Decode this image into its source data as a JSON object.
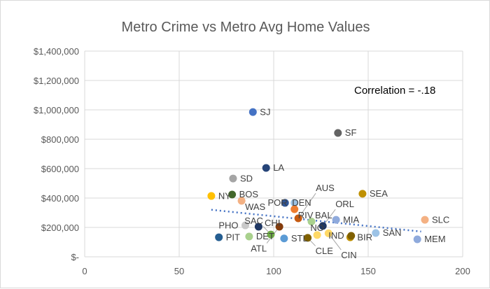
{
  "chart_data": {
    "type": "scatter",
    "title": "Metro Crime vs Metro Avg Home Values",
    "annotation": "Correlation = -.18",
    "xlim": [
      0,
      200
    ],
    "ylim": [
      0,
      1400000
    ],
    "x_ticks": [
      "0",
      "50",
      "100",
      "150",
      "200"
    ],
    "y_ticks": [
      "$-",
      "$200,000",
      "$400,000",
      "$600,000",
      "$800,000",
      "$1,000,000",
      "$1,200,000",
      "$1,400,000"
    ],
    "grid": true,
    "trendline": {
      "style": "dotted",
      "color": "#4472c4",
      "from": [
        67,
        320000
      ],
      "to": [
        178,
        172000
      ]
    },
    "points": [
      {
        "label": "SJ",
        "x": 89,
        "y": 985000,
        "color": "#4472c4"
      },
      {
        "label": "SF",
        "x": 134,
        "y": 843000,
        "color": "#636363"
      },
      {
        "label": "LA",
        "x": 96,
        "y": 605000,
        "color": "#264478"
      },
      {
        "label": "SD",
        "x": 78.5,
        "y": 533000,
        "color": "#a5a5a5"
      },
      {
        "label": "SEA",
        "x": 147,
        "y": 429000,
        "color": "#bf9000"
      },
      {
        "label": "BOS",
        "x": 78,
        "y": 424000,
        "color": "#43682b"
      },
      {
        "label": "NY",
        "x": 67,
        "y": 414000,
        "color": "#ffc000"
      },
      {
        "label": "WAS",
        "x": 83,
        "y": 381000,
        "color": "#f4b183"
      },
      {
        "label": "DEN",
        "x": 106,
        "y": 367000,
        "color": "#2f5597"
      },
      {
        "label": "POR",
        "x": 111,
        "y": 367000,
        "color": "#9dc3e6"
      },
      {
        "label": "RIV",
        "x": 111,
        "y": 324000,
        "color": "#ed7d31"
      },
      {
        "label": "AUS",
        "x": 113,
        "y": 262000,
        "color": "#c55a11"
      },
      {
        "label": "BAL",
        "x": 120,
        "y": 240000,
        "color": "#a9d18e"
      },
      {
        "label": "MIA",
        "x": 133,
        "y": 252000,
        "color": "#8faadc"
      },
      {
        "label": "SLC",
        "x": 180,
        "y": 252000,
        "color": "#f4b183"
      },
      {
        "label": "PHO",
        "x": 85,
        "y": 214000,
        "color": "#c9c9c9"
      },
      {
        "label": "CHI",
        "x": 92,
        "y": 205000,
        "color": "#203864"
      },
      {
        "label": "ATL",
        "x": 103,
        "y": 205000,
        "color": "#843c0c"
      },
      {
        "label": "ORL",
        "x": 126,
        "y": 210000,
        "color": "#1f3864"
      },
      {
        "label": "CIN",
        "x": 129,
        "y": 160000,
        "color": "#ffd966"
      },
      {
        "label": "SAN",
        "x": 154,
        "y": 162000,
        "color": "#9dc3e6"
      },
      {
        "label": "MEM",
        "x": 176,
        "y": 119000,
        "color": "#8faadc"
      },
      {
        "label": "PIT",
        "x": 71,
        "y": 133000,
        "color": "#255e91"
      },
      {
        "label": "DET",
        "x": 87,
        "y": 138000,
        "color": "#a9d18e"
      },
      {
        "label": "SAC",
        "x": 98.5,
        "y": 152000,
        "color": "#70ad47"
      },
      {
        "label": "STL",
        "x": 105.5,
        "y": 125000,
        "color": "#5b9bd5"
      },
      {
        "label": "CLE",
        "x": 118,
        "y": 129000,
        "color": "#7f6000"
      },
      {
        "label": "NO",
        "x": 123,
        "y": 148000,
        "color": "#ffd966"
      },
      {
        "label": "BIR",
        "x": 140.5,
        "y": 133000,
        "color": "#bf9000"
      },
      {
        "label": "IND",
        "x": 141,
        "y": 143000,
        "color": "#806000"
      }
    ]
  }
}
